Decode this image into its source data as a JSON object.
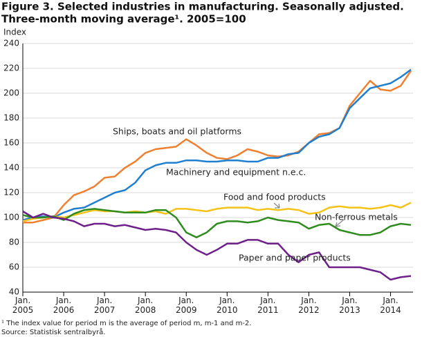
{
  "chart_data": {
    "type": "line",
    "title": "Figure 3. Selected industries in manufacturing. Seasonally adjusted.",
    "subtitle": "Three-month moving average¹. 2005=100",
    "y_label": "Index",
    "footnote": "¹ The index value for period m is the average of period m, m-1 and m-2.",
    "source": "Source: Statistisk sentralbyrå.",
    "x": [
      2005,
      2005.25,
      2005.5,
      2005.75,
      2006,
      2006.25,
      2006.5,
      2006.75,
      2007,
      2007.25,
      2007.5,
      2007.75,
      2008,
      2008.25,
      2008.5,
      2008.75,
      2009,
      2009.25,
      2009.5,
      2009.75,
      2010,
      2010.25,
      2010.5,
      2010.75,
      2011,
      2011.25,
      2011.5,
      2011.75,
      2012,
      2012.25,
      2012.5,
      2012.75,
      2013,
      2013.25,
      2013.5,
      2013.75,
      2014,
      2014.25,
      2014.5
    ],
    "series": [
      {
        "name": "Ships, boats and oil platforms",
        "color": "#f07f2f",
        "values": [
          96,
          96,
          98,
          100,
          110,
          118,
          121,
          125,
          132,
          133,
          140,
          145,
          152,
          155,
          156,
          157,
          163,
          158,
          152,
          148,
          147,
          150,
          155,
          153,
          150,
          149,
          150,
          153,
          160,
          167,
          168,
          172,
          190,
          200,
          210,
          203,
          202,
          206,
          218
        ]
      },
      {
        "name": "Machinery and equipment n.e.c.",
        "color": "#1e7fd0",
        "values": [
          98,
          100,
          101,
          100,
          104,
          107,
          108,
          112,
          116,
          120,
          122,
          128,
          138,
          142,
          144,
          144,
          146,
          146,
          145,
          145,
          146,
          146,
          145,
          145,
          148,
          148,
          151,
          152,
          160,
          165,
          167,
          172,
          188,
          196,
          204,
          206,
          208,
          213,
          219
        ]
      },
      {
        "name": "Food and food products",
        "color": "#f5c318",
        "values": [
          97,
          99,
          100,
          101,
          100,
          102,
          104,
          106,
          105,
          105,
          104,
          105,
          104,
          105,
          103,
          107,
          107,
          106,
          105,
          107,
          108,
          108,
          108,
          106,
          107,
          106,
          107,
          106,
          103,
          104,
          108,
          109,
          108,
          108,
          107,
          108,
          110,
          108,
          112
        ]
      },
      {
        "name": "Non-ferrous metals",
        "color": "#2e8b1e",
        "values": [
          102,
          100,
          100,
          101,
          98,
          103,
          106,
          107,
          106,
          105,
          104,
          104,
          104,
          106,
          106,
          100,
          88,
          84,
          88,
          95,
          97,
          97,
          96,
          97,
          100,
          98,
          97,
          96,
          91,
          94,
          95,
          90,
          88,
          86,
          86,
          88,
          93,
          95,
          94
        ]
      },
      {
        "name": "Paper and paper products",
        "color": "#6d1f8a",
        "values": [
          105,
          100,
          103,
          100,
          99,
          97,
          93,
          95,
          95,
          93,
          94,
          92,
          90,
          91,
          90,
          88,
          80,
          74,
          70,
          74,
          79,
          79,
          82,
          82,
          79,
          79,
          70,
          64,
          70,
          72,
          60,
          60,
          60,
          60,
          58,
          56,
          50,
          52,
          53
        ]
      }
    ],
    "xlim": [
      2005,
      2014.55
    ],
    "xticks": [
      {
        "value": 2005,
        "label": "Jan. 2005"
      },
      {
        "value": 2006,
        "label": "Jan. 2006"
      },
      {
        "value": 2007,
        "label": "Jan. 2007"
      },
      {
        "value": 2008,
        "label": "Jan. 2008"
      },
      {
        "value": 2009,
        "label": "Jan. 2009"
      },
      {
        "value": 2010,
        "label": "Jan. 2010"
      },
      {
        "value": 2011,
        "label": "Jan. 2011"
      },
      {
        "value": 2012,
        "label": "Jan. 2012"
      },
      {
        "value": 2013,
        "label": "Jan. 2013"
      },
      {
        "value": 2014,
        "label": "Jan. 2014"
      }
    ],
    "ylim": [
      40,
      240
    ],
    "yticks": [
      40,
      60,
      80,
      100,
      120,
      140,
      160,
      180,
      200,
      220,
      240
    ],
    "grid": true
  }
}
